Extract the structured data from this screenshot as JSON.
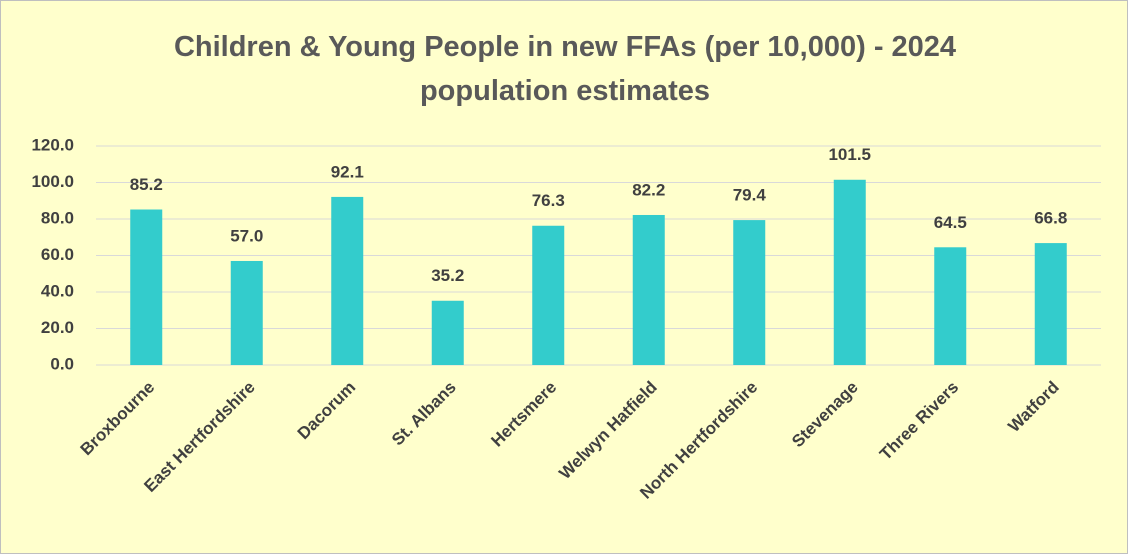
{
  "chart_data": {
    "type": "bar",
    "title": "Children & Young People in new FFAs (per 10,000) - 2024 population estimates",
    "categories": [
      "Broxbourne",
      "East Hertfordshire",
      "Dacorum",
      "St. Albans",
      "Hertsmere",
      "Welwyn Hatfield",
      "North Hertfordshire",
      "Stevenage",
      "Three Rivers",
      "Watford"
    ],
    "values": [
      85.2,
      57,
      92.1,
      35.2,
      76.3,
      82.2,
      79.4,
      101.5,
      64.5,
      66.8
    ],
    "value_labels": [
      "85.2",
      "57.0",
      "92.1",
      "35.2",
      "76.3",
      "82.2",
      "79.4",
      "101.5",
      "64.5",
      "66.8"
    ],
    "color": "#33cccc",
    "ylim": [
      0,
      120
    ],
    "yticks": [
      {
        "value": 0,
        "label": "0.0"
      },
      {
        "value": 20,
        "label": "20.0"
      },
      {
        "value": 40,
        "label": "40.0"
      },
      {
        "value": 60,
        "label": "60.0"
      },
      {
        "value": 80,
        "label": "80.0"
      },
      {
        "value": 100,
        "label": "100.0"
      },
      {
        "value": 120,
        "label": "120.0"
      }
    ],
    "grid": true
  }
}
